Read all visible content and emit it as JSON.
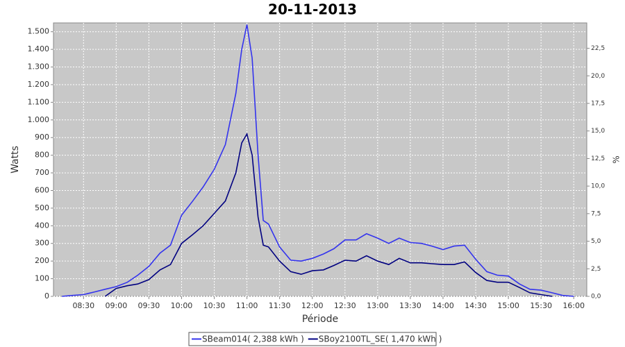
{
  "chart_data": {
    "type": "line",
    "title": "20-11-2013",
    "x_label": "Période",
    "y_label": "Watts",
    "y2_label": "%",
    "x": [
      8.17,
      8.33,
      8.5,
      8.67,
      8.83,
      9.0,
      9.17,
      9.33,
      9.5,
      9.67,
      9.83,
      10.0,
      10.17,
      10.33,
      10.5,
      10.67,
      10.83,
      10.92,
      11.0,
      11.08,
      11.17,
      11.25,
      11.33,
      11.5,
      11.67,
      11.83,
      12.0,
      12.17,
      12.33,
      12.5,
      12.67,
      12.83,
      13.0,
      13.17,
      13.33,
      13.5,
      13.67,
      13.83,
      14.0,
      14.17,
      14.33,
      14.5,
      14.67,
      14.83,
      15.0,
      15.17,
      15.33,
      15.5,
      15.67,
      15.83,
      16.0
    ],
    "series": [
      {
        "name": "SBeam014( 2,388 kWh )",
        "color": "#3333ee",
        "values": [
          0,
          5,
          10,
          25,
          40,
          55,
          80,
          120,
          170,
          245,
          290,
          460,
          540,
          620,
          720,
          860,
          1150,
          1400,
          1540,
          1350,
          800,
          430,
          410,
          280,
          205,
          200,
          215,
          240,
          270,
          320,
          320,
          355,
          330,
          300,
          330,
          305,
          300,
          285,
          265,
          285,
          290,
          210,
          140,
          120,
          115,
          70,
          40,
          35,
          20,
          5,
          0
        ]
      },
      {
        "name": "SBoy2100TL_SE( 1,470 kWh )",
        "color": "#000080",
        "values": [
          null,
          null,
          null,
          null,
          0,
          45,
          60,
          70,
          95,
          150,
          180,
          300,
          350,
          400,
          470,
          540,
          700,
          870,
          920,
          800,
          450,
          290,
          280,
          200,
          140,
          125,
          145,
          150,
          175,
          205,
          200,
          230,
          200,
          180,
          215,
          190,
          190,
          185,
          180,
          180,
          195,
          135,
          90,
          80,
          80,
          50,
          20,
          10,
          0,
          null,
          null
        ]
      }
    ],
    "xlim": [
      8.04,
      16.2
    ],
    "xticks": [
      {
        "value": 8.5,
        "label": "08:30"
      },
      {
        "value": 9.0,
        "label": "09:00"
      },
      {
        "value": 9.5,
        "label": "09:30"
      },
      {
        "value": 10.0,
        "label": "10:00"
      },
      {
        "value": 10.5,
        "label": "10:30"
      },
      {
        "value": 11.0,
        "label": "11:00"
      },
      {
        "value": 11.5,
        "label": "11:30"
      },
      {
        "value": 12.0,
        "label": "12:00"
      },
      {
        "value": 12.5,
        "label": "12:30"
      },
      {
        "value": 13.0,
        "label": "13:00"
      },
      {
        "value": 13.5,
        "label": "13:30"
      },
      {
        "value": 14.0,
        "label": "14:00"
      },
      {
        "value": 14.5,
        "label": "14:30"
      },
      {
        "value": 15.0,
        "label": "15:00"
      },
      {
        "value": 15.5,
        "label": "15:30"
      },
      {
        "value": 16.0,
        "label": "16:00"
      }
    ],
    "ylim": [
      0,
      1550
    ],
    "yticks": [
      0,
      100,
      200,
      300,
      400,
      500,
      600,
      700,
      800,
      900,
      {
        "value": 1000,
        "label": "1.000"
      },
      {
        "value": 1100,
        "label": "1.100"
      },
      {
        "value": 1200,
        "label": "1.200"
      },
      {
        "value": 1300,
        "label": "1.300"
      },
      {
        "value": 1400,
        "label": "1.400"
      },
      {
        "value": 1500,
        "label": "1.500"
      }
    ],
    "y2lim": [
      0,
      24.8
    ],
    "y2ticks": [
      {
        "value": 0,
        "label": "0,0"
      },
      {
        "value": 2.5,
        "label": "2,5"
      },
      {
        "value": 5,
        "label": "5,0"
      },
      {
        "value": 7.5,
        "label": "7,5"
      },
      {
        "value": 10,
        "label": "10,0"
      },
      {
        "value": 12.5,
        "label": "12,5"
      },
      {
        "value": 15,
        "label": "15,0"
      },
      {
        "value": 17.5,
        "label": "17,5"
      },
      {
        "value": 20,
        "label": "20,0"
      },
      {
        "value": 22.5,
        "label": "22,5"
      }
    ],
    "grid": true
  }
}
